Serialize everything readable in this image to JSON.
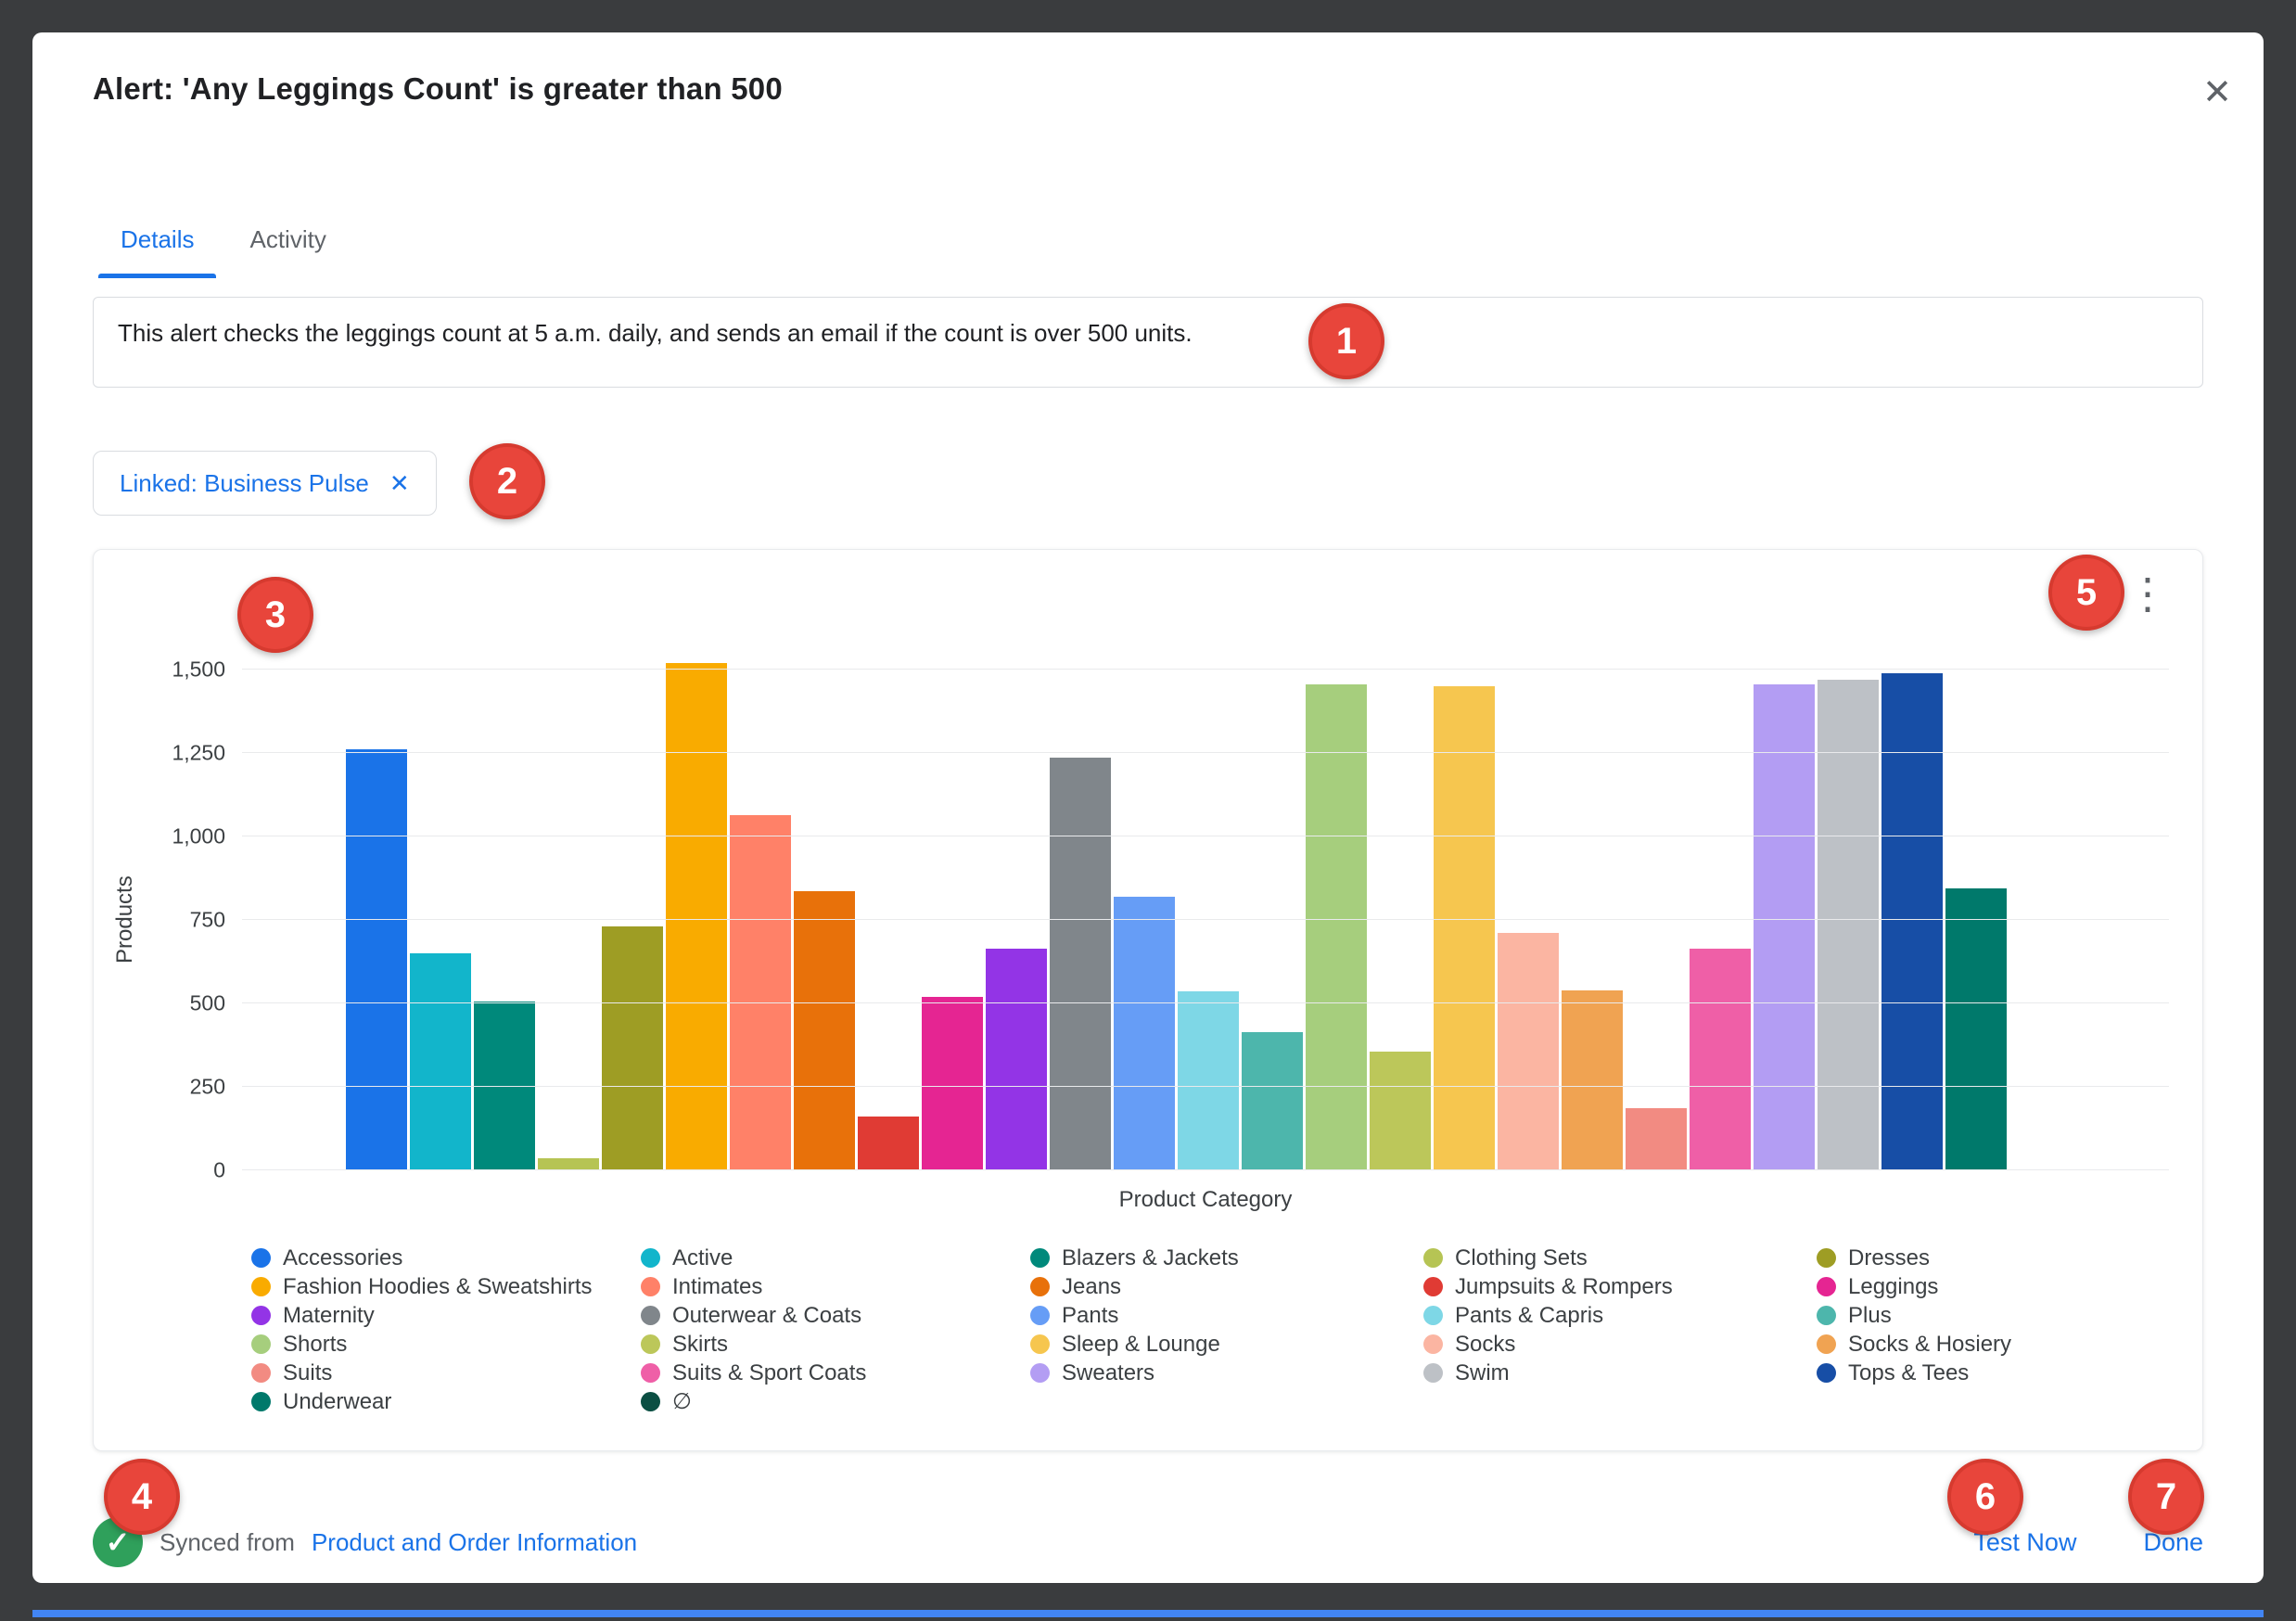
{
  "modal": {
    "title": "Alert: 'Any Leggings Count' is greater than 500",
    "tabs": [
      {
        "label": "Details",
        "active": true
      },
      {
        "label": "Activity",
        "active": false
      }
    ],
    "description": "This alert checks the leggings count at 5 a.m. daily, and sends an email if the count is over 500 units.",
    "linked_chip": {
      "label": "Linked: Business Pulse"
    },
    "footer": {
      "synced_prefix": "Synced from",
      "synced_link": "Product and Order Information",
      "test_now": "Test Now",
      "done": "Done"
    }
  },
  "icons": {
    "close": "✕",
    "kebab": "⋮",
    "check": "✓",
    "chip_remove": "✕"
  },
  "badges": [
    "1",
    "2",
    "3",
    "4",
    "5",
    "6",
    "7"
  ],
  "chart_data": {
    "type": "bar",
    "title": "",
    "xlabel": "Product Category",
    "ylabel": "Products",
    "ylim": [
      0,
      1500
    ],
    "yticks": [
      0,
      250,
      500,
      750,
      1000,
      1250,
      1500
    ],
    "ytick_labels": [
      "0",
      "250",
      "500",
      "750",
      "1,000",
      "1,250",
      "1,500"
    ],
    "grid": true,
    "legend_position": "bottom",
    "categories": [
      "Accessories",
      "Active",
      "Blazers & Jackets",
      "Clothing Sets",
      "Dresses",
      "Fashion Hoodies & Sweatshirts",
      "Intimates",
      "Jeans",
      "Jumpsuits & Rompers",
      "Leggings",
      "Maternity",
      "Outerwear & Coats",
      "Pants",
      "Pants & Capris",
      "Plus",
      "Shorts",
      "Skirts",
      "Sleep & Lounge",
      "Socks",
      "Socks & Hosiery",
      "Suits",
      "Suits & Sport Coats",
      "Sweaters",
      "Swim",
      "Tops & Tees",
      "Underwear",
      "∅"
    ],
    "values": [
      1260,
      650,
      505,
      35,
      730,
      1520,
      1065,
      835,
      160,
      520,
      665,
      1235,
      820,
      535,
      415,
      1455,
      355,
      1450,
      710,
      540,
      185,
      665,
      1455,
      1470,
      1490,
      845,
      0
    ],
    "colors": [
      "#1a73e8",
      "#12b5cb",
      "#00897b",
      "#b6c454",
      "#9e9d24",
      "#f9ab00",
      "#ff8168",
      "#e8710a",
      "#e03b34",
      "#e52592",
      "#9334e6",
      "#80868b",
      "#669df6",
      "#7ed7e6",
      "#4db6ac",
      "#a6ce7d",
      "#bcc75a",
      "#f6c64f",
      "#fbb5a2",
      "#f0a352",
      "#f28b82",
      "#ef5fa7",
      "#b39df3",
      "#bdc1c6",
      "#174ea6",
      "#00796b",
      "#0b4f43"
    ]
  }
}
